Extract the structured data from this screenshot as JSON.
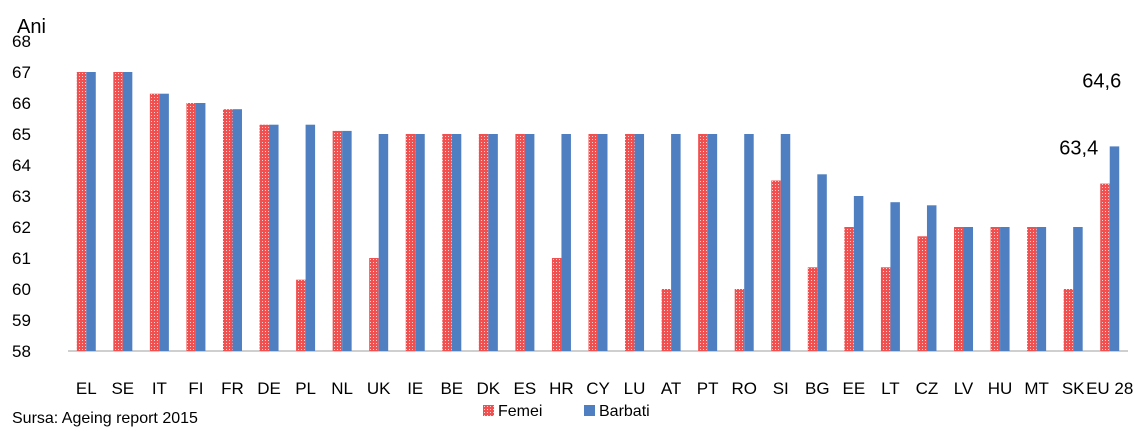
{
  "chart_data": {
    "type": "bar",
    "ylabel": "Ani",
    "ylim": [
      58,
      68
    ],
    "yticks": [
      58,
      59,
      60,
      61,
      62,
      63,
      64,
      65,
      66,
      67,
      68
    ],
    "categories": [
      "EL",
      "SE",
      "IT",
      "FI",
      "FR",
      "DE",
      "PL",
      "NL",
      "UK",
      "IE",
      "BE",
      "DK",
      "ES",
      "HR",
      "CY",
      "LU",
      "AT",
      "PT",
      "RO",
      "SI",
      "BG",
      "EE",
      "LT",
      "CZ",
      "LV",
      "HU",
      "MT",
      "SK",
      "EU 28"
    ],
    "series": [
      {
        "name": "Femei",
        "color": "#f0504f",
        "values": [
          67,
          67,
          66.3,
          66,
          65.8,
          65.3,
          60.3,
          65.1,
          61,
          65,
          65,
          65,
          65,
          61,
          65,
          65,
          60,
          65,
          60,
          63.5,
          60.7,
          62,
          60.7,
          61.7,
          62,
          62,
          62,
          60,
          63.4
        ]
      },
      {
        "name": "Barbati",
        "color": "#4f7fc0",
        "values": [
          67,
          67,
          66.3,
          66,
          65.8,
          65.3,
          65.3,
          65.1,
          65,
          65,
          65,
          65,
          65,
          65,
          65,
          65,
          65,
          65,
          65,
          65,
          63.7,
          63,
          62.8,
          62.7,
          62,
          62,
          62,
          62,
          64.6
        ]
      }
    ],
    "data_labels": [
      {
        "category": "EU 28",
        "series": "Femei",
        "text": "63,4"
      },
      {
        "category": "EU 28",
        "series": "Barbati",
        "text": "64,6"
      }
    ],
    "legend_position": "bottom",
    "grid": false
  },
  "source": "Sursa: Ageing report 2015"
}
